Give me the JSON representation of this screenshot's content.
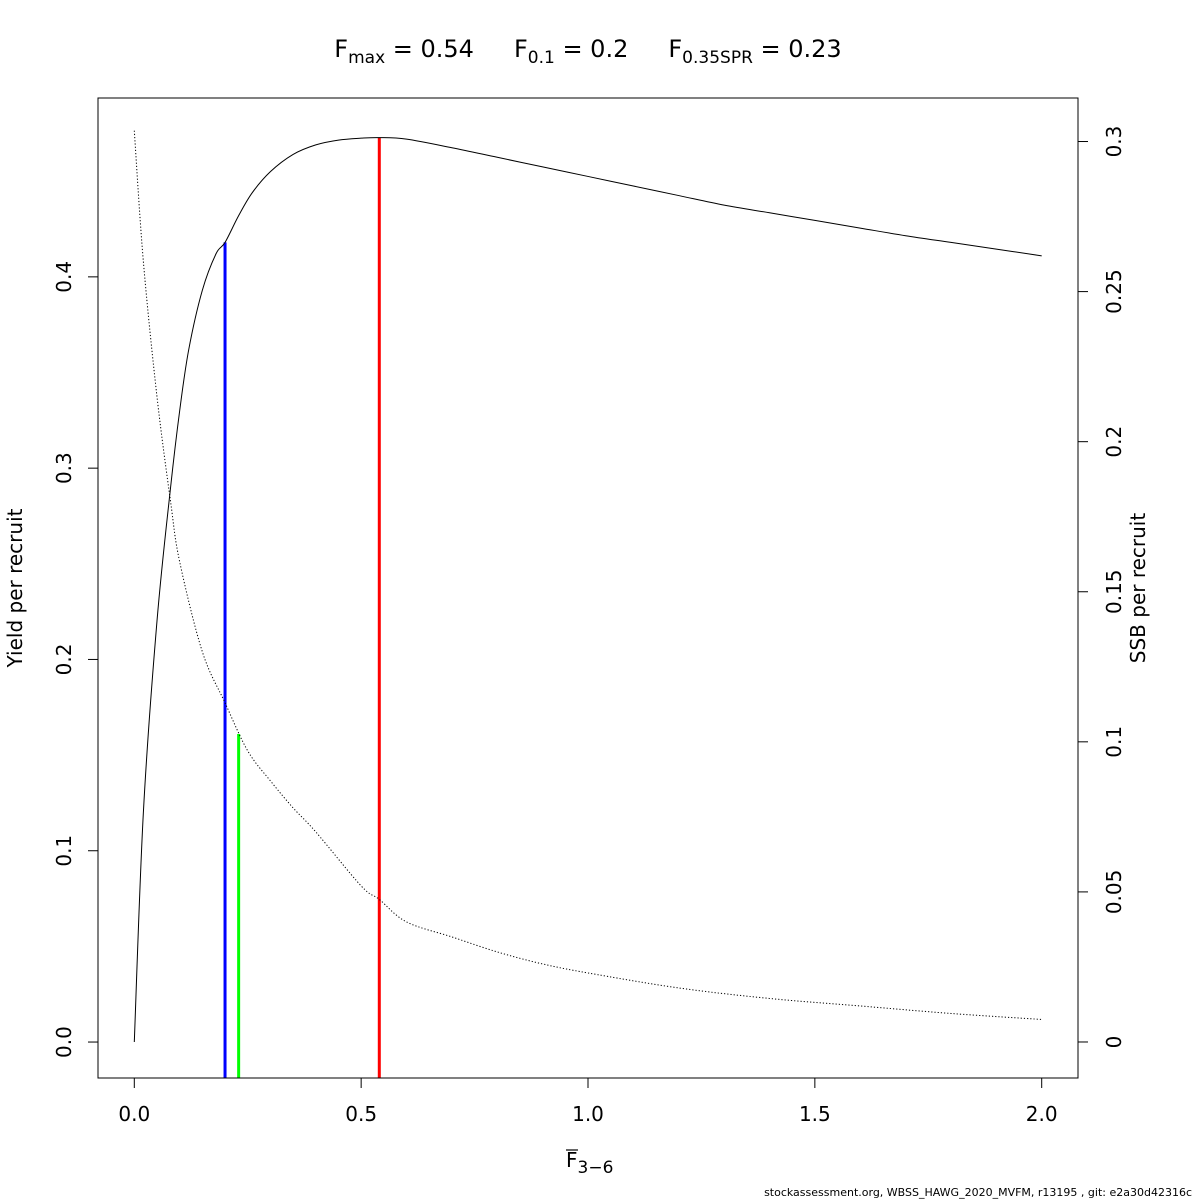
{
  "chart_data": {
    "type": "line",
    "title_parts": [
      {
        "main": "F",
        "sub": "max",
        "rest": " = 0.54"
      },
      {
        "main": "F",
        "sub": "0.1",
        "rest": " = 0.2"
      },
      {
        "main": "F",
        "sub": "0.35SPR",
        "rest": " = 0.23"
      }
    ],
    "xlabel": {
      "main": "F",
      "sub": "3−6"
    },
    "ylabel": "Yield per recruit",
    "y2label": "SSB per recruit",
    "xlim": [
      -0.08,
      2.08
    ],
    "ylim": [
      -0.0188,
      0.4935
    ],
    "y2lim": [
      -0.012,
      0.3145
    ],
    "x_ticks": [
      {
        "v": 0,
        "label": "0.0"
      },
      {
        "v": 0.5,
        "label": "0.5"
      },
      {
        "v": 1,
        "label": "1.0"
      },
      {
        "v": 1.5,
        "label": "1.5"
      },
      {
        "v": 2,
        "label": "2.0"
      }
    ],
    "y_ticks": [
      {
        "v": 0,
        "label": "0.0"
      },
      {
        "v": 0.1,
        "label": "0.1"
      },
      {
        "v": 0.2,
        "label": "0.2"
      },
      {
        "v": 0.3,
        "label": "0.3"
      },
      {
        "v": 0.4,
        "label": "0.4"
      }
    ],
    "y2_ticks": [
      {
        "v": 0,
        "label": "0"
      },
      {
        "v": 0.05,
        "label": "0.05"
      },
      {
        "v": 0.1,
        "label": "0.1"
      },
      {
        "v": 0.15,
        "label": "0.15"
      },
      {
        "v": 0.2,
        "label": "0.2"
      },
      {
        "v": 0.25,
        "label": "0.25"
      },
      {
        "v": 0.3,
        "label": "0.3"
      }
    ],
    "series": [
      {
        "axis": "left",
        "color": "#000000",
        "style": "solid",
        "x": [
          0,
          0.02,
          0.05,
          0.08,
          0.1,
          0.12,
          0.15,
          0.18,
          0.2,
          0.23,
          0.26,
          0.3,
          0.35,
          0.4,
          0.45,
          0.5,
          0.54,
          0.6,
          0.7,
          0.8,
          0.9,
          1.0,
          1.1,
          1.2,
          1.3,
          1.4,
          1.5,
          1.6,
          1.7,
          1.8,
          1.9,
          2.0
        ],
        "y": [
          0,
          0.12,
          0.22,
          0.29,
          0.33,
          0.362,
          0.393,
          0.412,
          0.418,
          0.432,
          0.444,
          0.455,
          0.464,
          0.469,
          0.4715,
          0.4725,
          0.4728,
          0.472,
          0.4675,
          0.4625,
          0.4575,
          0.4525,
          0.4475,
          0.4425,
          0.4375,
          0.4335,
          0.4295,
          0.4255,
          0.4215,
          0.418,
          0.4145,
          0.411
        ]
      },
      {
        "axis": "right",
        "color": "#000000",
        "style": "dotted",
        "x": [
          0,
          0.02,
          0.05,
          0.08,
          0.1,
          0.15,
          0.2,
          0.25,
          0.3,
          0.35,
          0.4,
          0.5,
          0.54,
          0.6,
          0.7,
          0.8,
          0.9,
          1.0,
          1.2,
          1.4,
          1.6,
          1.8,
          2.0
        ],
        "y": [
          0.3036,
          0.26,
          0.215,
          0.18,
          0.16,
          0.13,
          0.113,
          0.097,
          0.087,
          0.078,
          0.07,
          0.052,
          0.0475,
          0.04,
          0.035,
          0.03,
          0.026,
          0.023,
          0.018,
          0.0145,
          0.012,
          0.0095,
          0.0075
        ]
      }
    ],
    "reference_lines": [
      {
        "name": "F0.1",
        "x": 0.2,
        "y_top": 0.418,
        "color": "#0000ff"
      },
      {
        "name": "F0.35SPR",
        "x": 0.23,
        "y_top": 0.161,
        "color": "#00ff00"
      },
      {
        "name": "Fmax",
        "x": 0.54,
        "y_top": 0.4728,
        "color": "#ff0000"
      }
    ],
    "grid": false,
    "footer": "stockassessment.org, WBSS_HAWG_2020_MVFM, r13195 , git: e2a30d42316c"
  }
}
